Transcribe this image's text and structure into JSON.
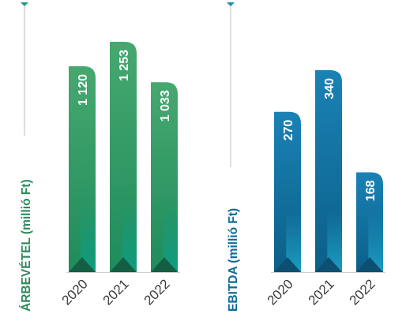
{
  "chart_data": [
    {
      "type": "bar",
      "ylabel": "ÁRBEVÉTEL (millió Ft)",
      "categories": [
        "2020",
        "2021",
        "2022"
      ],
      "values": [
        1120,
        1253,
        1033
      ],
      "value_labels": [
        "1 120",
        "1 253",
        "1 033"
      ],
      "ylim": [
        0,
        1253
      ],
      "colors": {
        "bar_light": "#47a86f",
        "bar_dark": "#1e8c5c",
        "accent": "#0f9e84",
        "corner_dark": "#145f43",
        "axis_title": "#2e8a5e",
        "marker": "#1d9a8a"
      }
    },
    {
      "type": "bar",
      "ylabel": "EBITDA (millió Ft)",
      "categories": [
        "2020",
        "2021",
        "2022"
      ],
      "values": [
        270,
        340,
        168
      ],
      "value_labels": [
        "270",
        "340",
        "168"
      ],
      "ylim": [
        0,
        340
      ],
      "colors": {
        "bar_light": "#1a82b5",
        "bar_dark": "#0b5f88",
        "accent": "#1fa3c9",
        "corner_dark": "#0d4f70",
        "axis_title": "#0e6b96",
        "marker": "#1a8fa8"
      }
    }
  ]
}
